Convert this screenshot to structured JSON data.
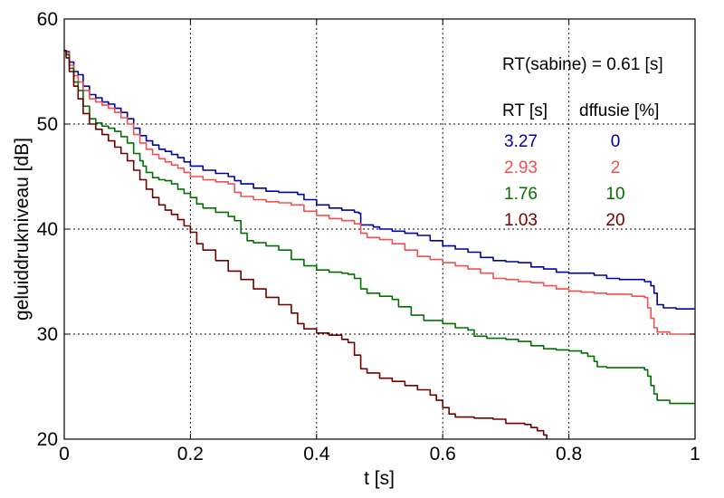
{
  "chart_data": {
    "type": "line",
    "title": "",
    "xlabel": "t  [s]",
    "ylabel": "geluiddrukniveau  [dB]",
    "xlim": [
      0,
      1
    ],
    "ylim": [
      20,
      60
    ],
    "xticks": [
      0,
      0.2,
      0.4,
      0.6,
      0.8,
      1
    ],
    "yticks": [
      20,
      30,
      40,
      50,
      60
    ],
    "xtick_labels": [
      "0",
      "0.2",
      "0.4",
      "0.6",
      "0.8",
      "1"
    ],
    "ytick_labels": [
      "20",
      "30",
      "40",
      "50",
      "60"
    ],
    "grid": true,
    "grid_style": "dotted",
    "annotation_title": "RT(sabine) = 0.61 [s]",
    "table_headers": [
      "RT [s]",
      "dffusie [%]"
    ],
    "series": [
      {
        "color": "#0000a0",
        "rt_label": "3.27",
        "diffusion_label": "0",
        "points": [
          [
            0,
            57
          ],
          [
            0.003,
            56.9
          ],
          [
            0.008,
            55.9
          ],
          [
            0.015,
            55
          ],
          [
            0.022,
            54.7
          ],
          [
            0.03,
            53.6
          ],
          [
            0.04,
            52.8
          ],
          [
            0.05,
            52.5
          ],
          [
            0.06,
            52.1
          ],
          [
            0.07,
            51.9
          ],
          [
            0.08,
            51.5
          ],
          [
            0.09,
            51.1
          ],
          [
            0.1,
            50.5
          ],
          [
            0.11,
            49.6
          ],
          [
            0.12,
            48.9
          ],
          [
            0.13,
            48.4
          ],
          [
            0.14,
            48
          ],
          [
            0.15,
            47.6
          ],
          [
            0.16,
            47.4
          ],
          [
            0.17,
            47.1
          ],
          [
            0.18,
            46.8
          ],
          [
            0.19,
            46.4
          ],
          [
            0.2,
            46
          ],
          [
            0.22,
            45.6
          ],
          [
            0.24,
            45.3
          ],
          [
            0.26,
            45
          ],
          [
            0.27,
            44.6
          ],
          [
            0.28,
            44.3
          ],
          [
            0.3,
            43.9
          ],
          [
            0.32,
            43.6
          ],
          [
            0.34,
            43.5
          ],
          [
            0.37,
            43.3
          ],
          [
            0.38,
            42.8
          ],
          [
            0.4,
            42.3
          ],
          [
            0.42,
            42
          ],
          [
            0.44,
            41.8
          ],
          [
            0.46,
            41.6
          ],
          [
            0.467,
            41.5
          ],
          [
            0.47,
            40.4
          ],
          [
            0.49,
            40.2
          ],
          [
            0.5,
            40
          ],
          [
            0.52,
            39.8
          ],
          [
            0.54,
            39.6
          ],
          [
            0.56,
            39.4
          ],
          [
            0.58,
            38.9
          ],
          [
            0.6,
            38.4
          ],
          [
            0.62,
            38.1
          ],
          [
            0.64,
            37.8
          ],
          [
            0.66,
            37.3
          ],
          [
            0.68,
            37
          ],
          [
            0.7,
            36.9
          ],
          [
            0.72,
            36.8
          ],
          [
            0.74,
            36.4
          ],
          [
            0.76,
            36.2
          ],
          [
            0.78,
            35.9
          ],
          [
            0.8,
            35.8
          ],
          [
            0.82,
            35.8
          ],
          [
            0.84,
            35.6
          ],
          [
            0.86,
            35.3
          ],
          [
            0.88,
            35.2
          ],
          [
            0.9,
            35.2
          ],
          [
            0.92,
            35
          ],
          [
            0.93,
            34.6
          ],
          [
            0.935,
            33.9
          ],
          [
            0.94,
            32.8
          ],
          [
            0.95,
            32.5
          ],
          [
            0.97,
            32.4
          ],
          [
            1,
            32.4
          ]
        ]
      },
      {
        "color": "#f05050",
        "rt_label": "2.93",
        "diffusion_label": "2",
        "points": [
          [
            0,
            57
          ],
          [
            0.003,
            56.8
          ],
          [
            0.008,
            55.6
          ],
          [
            0.015,
            54.6
          ],
          [
            0.022,
            54
          ],
          [
            0.03,
            53.2
          ],
          [
            0.04,
            52.4
          ],
          [
            0.05,
            52.1
          ],
          [
            0.06,
            51.8
          ],
          [
            0.07,
            51.5
          ],
          [
            0.08,
            51.1
          ],
          [
            0.09,
            50.6
          ],
          [
            0.1,
            50
          ],
          [
            0.11,
            49
          ],
          [
            0.12,
            48.2
          ],
          [
            0.13,
            47.6
          ],
          [
            0.14,
            47.1
          ],
          [
            0.15,
            46.7
          ],
          [
            0.16,
            46.4
          ],
          [
            0.17,
            46.1
          ],
          [
            0.18,
            45.8
          ],
          [
            0.19,
            45.4
          ],
          [
            0.2,
            45
          ],
          [
            0.22,
            44.7
          ],
          [
            0.24,
            44.5
          ],
          [
            0.26,
            44.3
          ],
          [
            0.27,
            43.5
          ],
          [
            0.28,
            43.1
          ],
          [
            0.3,
            42.8
          ],
          [
            0.32,
            42.6
          ],
          [
            0.34,
            42.5
          ],
          [
            0.36,
            42.3
          ],
          [
            0.38,
            41.7
          ],
          [
            0.4,
            41.3
          ],
          [
            0.42,
            41
          ],
          [
            0.44,
            40.8
          ],
          [
            0.46,
            40.5
          ],
          [
            0.47,
            39.6
          ],
          [
            0.48,
            39.2
          ],
          [
            0.5,
            39
          ],
          [
            0.52,
            38.6
          ],
          [
            0.54,
            38
          ],
          [
            0.56,
            37.4
          ],
          [
            0.58,
            37.1
          ],
          [
            0.6,
            36.8
          ],
          [
            0.62,
            36.5
          ],
          [
            0.64,
            36.2
          ],
          [
            0.66,
            35.8
          ],
          [
            0.68,
            35.3
          ],
          [
            0.7,
            35.2
          ],
          [
            0.72,
            35
          ],
          [
            0.74,
            34.9
          ],
          [
            0.76,
            34.6
          ],
          [
            0.78,
            34.3
          ],
          [
            0.8,
            34.1
          ],
          [
            0.82,
            34
          ],
          [
            0.84,
            33.9
          ],
          [
            0.86,
            33.8
          ],
          [
            0.88,
            33.8
          ],
          [
            0.9,
            33.6
          ],
          [
            0.92,
            33.5
          ],
          [
            0.925,
            32.5
          ],
          [
            0.93,
            31.5
          ],
          [
            0.935,
            30.6
          ],
          [
            0.94,
            30.2
          ],
          [
            0.96,
            30
          ],
          [
            1,
            30
          ]
        ]
      },
      {
        "color": "#007000",
        "rt_label": "1.76",
        "diffusion_label": "10",
        "points": [
          [
            0,
            57
          ],
          [
            0.003,
            56.6
          ],
          [
            0.008,
            55.3
          ],
          [
            0.015,
            54
          ],
          [
            0.022,
            53.2
          ],
          [
            0.03,
            51.7
          ],
          [
            0.04,
            50.5
          ],
          [
            0.05,
            50.1
          ],
          [
            0.06,
            49.8
          ],
          [
            0.07,
            49.6
          ],
          [
            0.08,
            49.3
          ],
          [
            0.09,
            48.8
          ],
          [
            0.1,
            48.2
          ],
          [
            0.11,
            47.2
          ],
          [
            0.12,
            46.5
          ],
          [
            0.125,
            46
          ],
          [
            0.13,
            45.4
          ],
          [
            0.14,
            44.9
          ],
          [
            0.15,
            44.7
          ],
          [
            0.16,
            44.6
          ],
          [
            0.17,
            44.3
          ],
          [
            0.18,
            43.8
          ],
          [
            0.19,
            43.4
          ],
          [
            0.2,
            43
          ],
          [
            0.21,
            42.4
          ],
          [
            0.22,
            42
          ],
          [
            0.24,
            41.6
          ],
          [
            0.26,
            41.2
          ],
          [
            0.27,
            40.8
          ],
          [
            0.28,
            39.6
          ],
          [
            0.29,
            38.9
          ],
          [
            0.3,
            38.7
          ],
          [
            0.32,
            38.4
          ],
          [
            0.34,
            38
          ],
          [
            0.36,
            37.1
          ],
          [
            0.38,
            36.5
          ],
          [
            0.4,
            36.1
          ],
          [
            0.42,
            35.9
          ],
          [
            0.44,
            35.8
          ],
          [
            0.45,
            35.7
          ],
          [
            0.46,
            35.3
          ],
          [
            0.47,
            34.3
          ],
          [
            0.48,
            33.9
          ],
          [
            0.5,
            33.6
          ],
          [
            0.52,
            33.3
          ],
          [
            0.53,
            32.6
          ],
          [
            0.55,
            31.8
          ],
          [
            0.57,
            31.3
          ],
          [
            0.6,
            31
          ],
          [
            0.62,
            30.6
          ],
          [
            0.64,
            30.4
          ],
          [
            0.65,
            29.8
          ],
          [
            0.67,
            29.6
          ],
          [
            0.7,
            29.5
          ],
          [
            0.72,
            29.3
          ],
          [
            0.74,
            28.9
          ],
          [
            0.76,
            28.6
          ],
          [
            0.78,
            28.5
          ],
          [
            0.8,
            28.4
          ],
          [
            0.82,
            28.2
          ],
          [
            0.83,
            27.9
          ],
          [
            0.84,
            27.4
          ],
          [
            0.845,
            26.9
          ],
          [
            0.86,
            26.8
          ],
          [
            0.9,
            26.8
          ],
          [
            0.92,
            26.6
          ],
          [
            0.925,
            26
          ],
          [
            0.93,
            25.1
          ],
          [
            0.935,
            24.3
          ],
          [
            0.94,
            23.7
          ],
          [
            0.96,
            23.4
          ],
          [
            1,
            23.4
          ]
        ]
      },
      {
        "color": "#700000",
        "rt_label": "1.03",
        "diffusion_label": "20",
        "points": [
          [
            0,
            57
          ],
          [
            0.003,
            56.3
          ],
          [
            0.008,
            55
          ],
          [
            0.015,
            53.6
          ],
          [
            0.022,
            52.4
          ],
          [
            0.03,
            51
          ],
          [
            0.04,
            50
          ],
          [
            0.05,
            49.5
          ],
          [
            0.06,
            49
          ],
          [
            0.07,
            48.4
          ],
          [
            0.08,
            47.8
          ],
          [
            0.09,
            47.2
          ],
          [
            0.1,
            46.5
          ],
          [
            0.11,
            45.6
          ],
          [
            0.12,
            44.7
          ],
          [
            0.13,
            43.8
          ],
          [
            0.14,
            43
          ],
          [
            0.15,
            42.3
          ],
          [
            0.16,
            41.8
          ],
          [
            0.17,
            41.4
          ],
          [
            0.18,
            40.9
          ],
          [
            0.19,
            40.3
          ],
          [
            0.2,
            39.7
          ],
          [
            0.21,
            38.6
          ],
          [
            0.22,
            38
          ],
          [
            0.24,
            37
          ],
          [
            0.26,
            36
          ],
          [
            0.28,
            35.2
          ],
          [
            0.3,
            34.3
          ],
          [
            0.32,
            33.5
          ],
          [
            0.34,
            32.8
          ],
          [
            0.36,
            32
          ],
          [
            0.37,
            31
          ],
          [
            0.38,
            30.5
          ],
          [
            0.4,
            30.1
          ],
          [
            0.42,
            29.9
          ],
          [
            0.44,
            29.5
          ],
          [
            0.45,
            29.2
          ],
          [
            0.46,
            28
          ],
          [
            0.47,
            26.7
          ],
          [
            0.48,
            26.3
          ],
          [
            0.5,
            25.8
          ],
          [
            0.52,
            25.5
          ],
          [
            0.54,
            25.1
          ],
          [
            0.56,
            24.7
          ],
          [
            0.58,
            24.2
          ],
          [
            0.59,
            23.7
          ],
          [
            0.6,
            23
          ],
          [
            0.61,
            22.4
          ],
          [
            0.62,
            22.1
          ],
          [
            0.65,
            22
          ],
          [
            0.68,
            21.9
          ],
          [
            0.7,
            21.5
          ],
          [
            0.73,
            21.4
          ],
          [
            0.74,
            21.1
          ],
          [
            0.75,
            20.8
          ],
          [
            0.76,
            20.4
          ],
          [
            0.765,
            20
          ]
        ]
      }
    ]
  }
}
